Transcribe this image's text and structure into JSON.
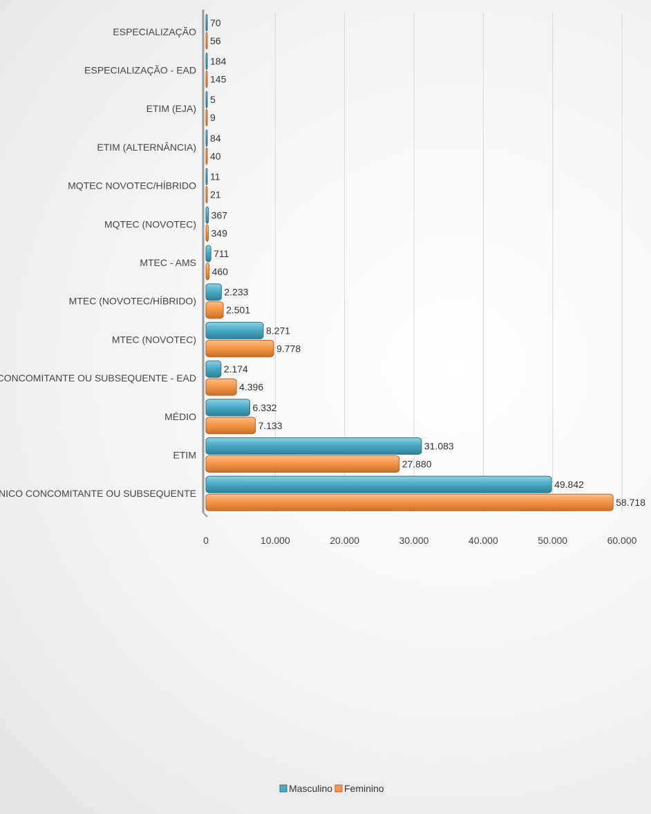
{
  "chart_data": {
    "type": "bar",
    "orientation": "horizontal",
    "categories": [
      "ESPECIALIZAÇÃO",
      "ESPECIALIZAÇÃO - EAD",
      "ETIM (EJA)",
      "ETIM (ALTERNÂNCIA)",
      "MQTEC NOVOTEC/HÍBRIDO",
      "MQTEC (NOVOTEC)",
      "MTEC - AMS",
      "MTEC (NOVOTEC/HÍBRIDO)",
      "MTEC (NOVOTEC)",
      "TÉCNICO CONCOMITANTE OU SUBSEQUENTE - EAD",
      "MÉDIO",
      "ETIM",
      "TÉCNICO CONCOMITANTE OU SUBSEQUENTE"
    ],
    "series": [
      {
        "name": "Masculino",
        "color": "#4bacc6",
        "values": [
          70,
          184,
          5,
          84,
          11,
          367,
          711,
          2233,
          8271,
          2174,
          6332,
          31083,
          49842
        ],
        "labels": [
          "70",
          "184",
          "5",
          "84",
          "11",
          "367",
          "711",
          "2.233",
          "8.271",
          "2.174",
          "6.332",
          "31.083",
          "49.842"
        ]
      },
      {
        "name": "Feminino",
        "color": "#f79646",
        "values": [
          56,
          145,
          9,
          40,
          21,
          349,
          460,
          2501,
          9778,
          4396,
          7133,
          27880,
          58718
        ],
        "labels": [
          "56",
          "145",
          "9",
          "40",
          "21",
          "349",
          "460",
          "2.501",
          "9.778",
          "4.396",
          "7.133",
          "27.880",
          "58.718"
        ]
      }
    ],
    "xlim": [
      0,
      60000
    ],
    "xticks": [
      0,
      10000,
      20000,
      30000,
      40000,
      50000,
      60000
    ],
    "xtick_labels": [
      "0",
      "10.000",
      "20.000",
      "30.000",
      "40.000",
      "50.000",
      "60.000"
    ],
    "grid": true,
    "legend_position": "bottom",
    "title": "",
    "xlabel": "",
    "ylabel": ""
  }
}
